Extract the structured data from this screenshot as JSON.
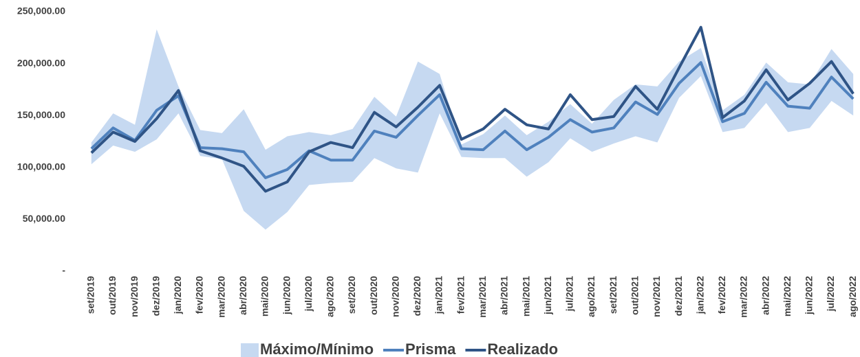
{
  "chart_data": {
    "type": "line",
    "categories": [
      "set/2019",
      "out/2019",
      "nov/2019",
      "dez/2019",
      "jan/2020",
      "fev/2020",
      "mar/2020",
      "abr/2020",
      "mai/2020",
      "jun/2020",
      "jul/2020",
      "ago/2020",
      "set/2020",
      "out/2020",
      "nov/2020",
      "dez/2020",
      "jan/2021",
      "fev/2021",
      "mar/2021",
      "abr/2021",
      "mai/2021",
      "jun/2021",
      "jul/2021",
      "ago/2021",
      "set/2021",
      "out/2021",
      "nov/2021",
      "dez/2021",
      "jan/2022",
      "fev/2022",
      "mar/2022",
      "abr/2022",
      "mai/2022",
      "jun/2022",
      "jul/2022",
      "ago/2022"
    ],
    "band": {
      "name": "Máximo/Mínimo",
      "color": "#c6d9f1",
      "high": [
        124000,
        152000,
        141000,
        233000,
        178000,
        136000,
        133000,
        156000,
        117000,
        130000,
        134000,
        131000,
        137000,
        168000,
        149000,
        202000,
        190000,
        122000,
        132000,
        150000,
        131000,
        144000,
        161000,
        142000,
        165000,
        180000,
        178000,
        202000,
        215000,
        155000,
        170000,
        201000,
        182000,
        180000,
        214000,
        190000
      ],
      "low": [
        103000,
        121000,
        115000,
        127000,
        152000,
        111000,
        108000,
        58000,
        40000,
        57000,
        83000,
        85000,
        86000,
        109000,
        99000,
        95000,
        152000,
        110000,
        109000,
        109000,
        91000,
        105000,
        128000,
        115000,
        123000,
        130000,
        124000,
        167000,
        188000,
        134000,
        138000,
        162000,
        134000,
        138000,
        164000,
        150000
      ]
    },
    "series": [
      {
        "name": "Prisma",
        "color": "#4f81bd",
        "values": [
          118000,
          138000,
          126000,
          155000,
          169000,
          119000,
          118000,
          115000,
          90000,
          98000,
          116000,
          107000,
          107000,
          135000,
          129000,
          150000,
          170000,
          118000,
          117000,
          135000,
          117000,
          129000,
          146000,
          134000,
          138000,
          163000,
          151000,
          181000,
          201000,
          144000,
          152000,
          182000,
          159000,
          157000,
          187000,
          166000
        ]
      },
      {
        "name": "Realizado",
        "color": "#2f5486",
        "values": [
          114000,
          134000,
          125000,
          147000,
          174000,
          116000,
          109000,
          101000,
          77000,
          86000,
          115000,
          124000,
          119000,
          153000,
          139000,
          158000,
          179000,
          127000,
          137000,
          156000,
          141000,
          137000,
          170000,
          146000,
          149000,
          178000,
          156000,
          196000,
          235000,
          148000,
          164000,
          194000,
          165000,
          181000,
          202000,
          171000
        ]
      }
    ],
    "ylim": [
      0,
      250000
    ],
    "yticks": [
      {
        "value": 0,
        "label": "-"
      },
      {
        "value": 50000,
        "label": "50,000.00"
      },
      {
        "value": 100000,
        "label": "100,000.00"
      },
      {
        "value": 150000,
        "label": "150,000.00"
      },
      {
        "value": 200000,
        "label": "200,000.00"
      },
      {
        "value": 250000,
        "label": "250,000.00"
      }
    ],
    "legend": "bottom"
  }
}
